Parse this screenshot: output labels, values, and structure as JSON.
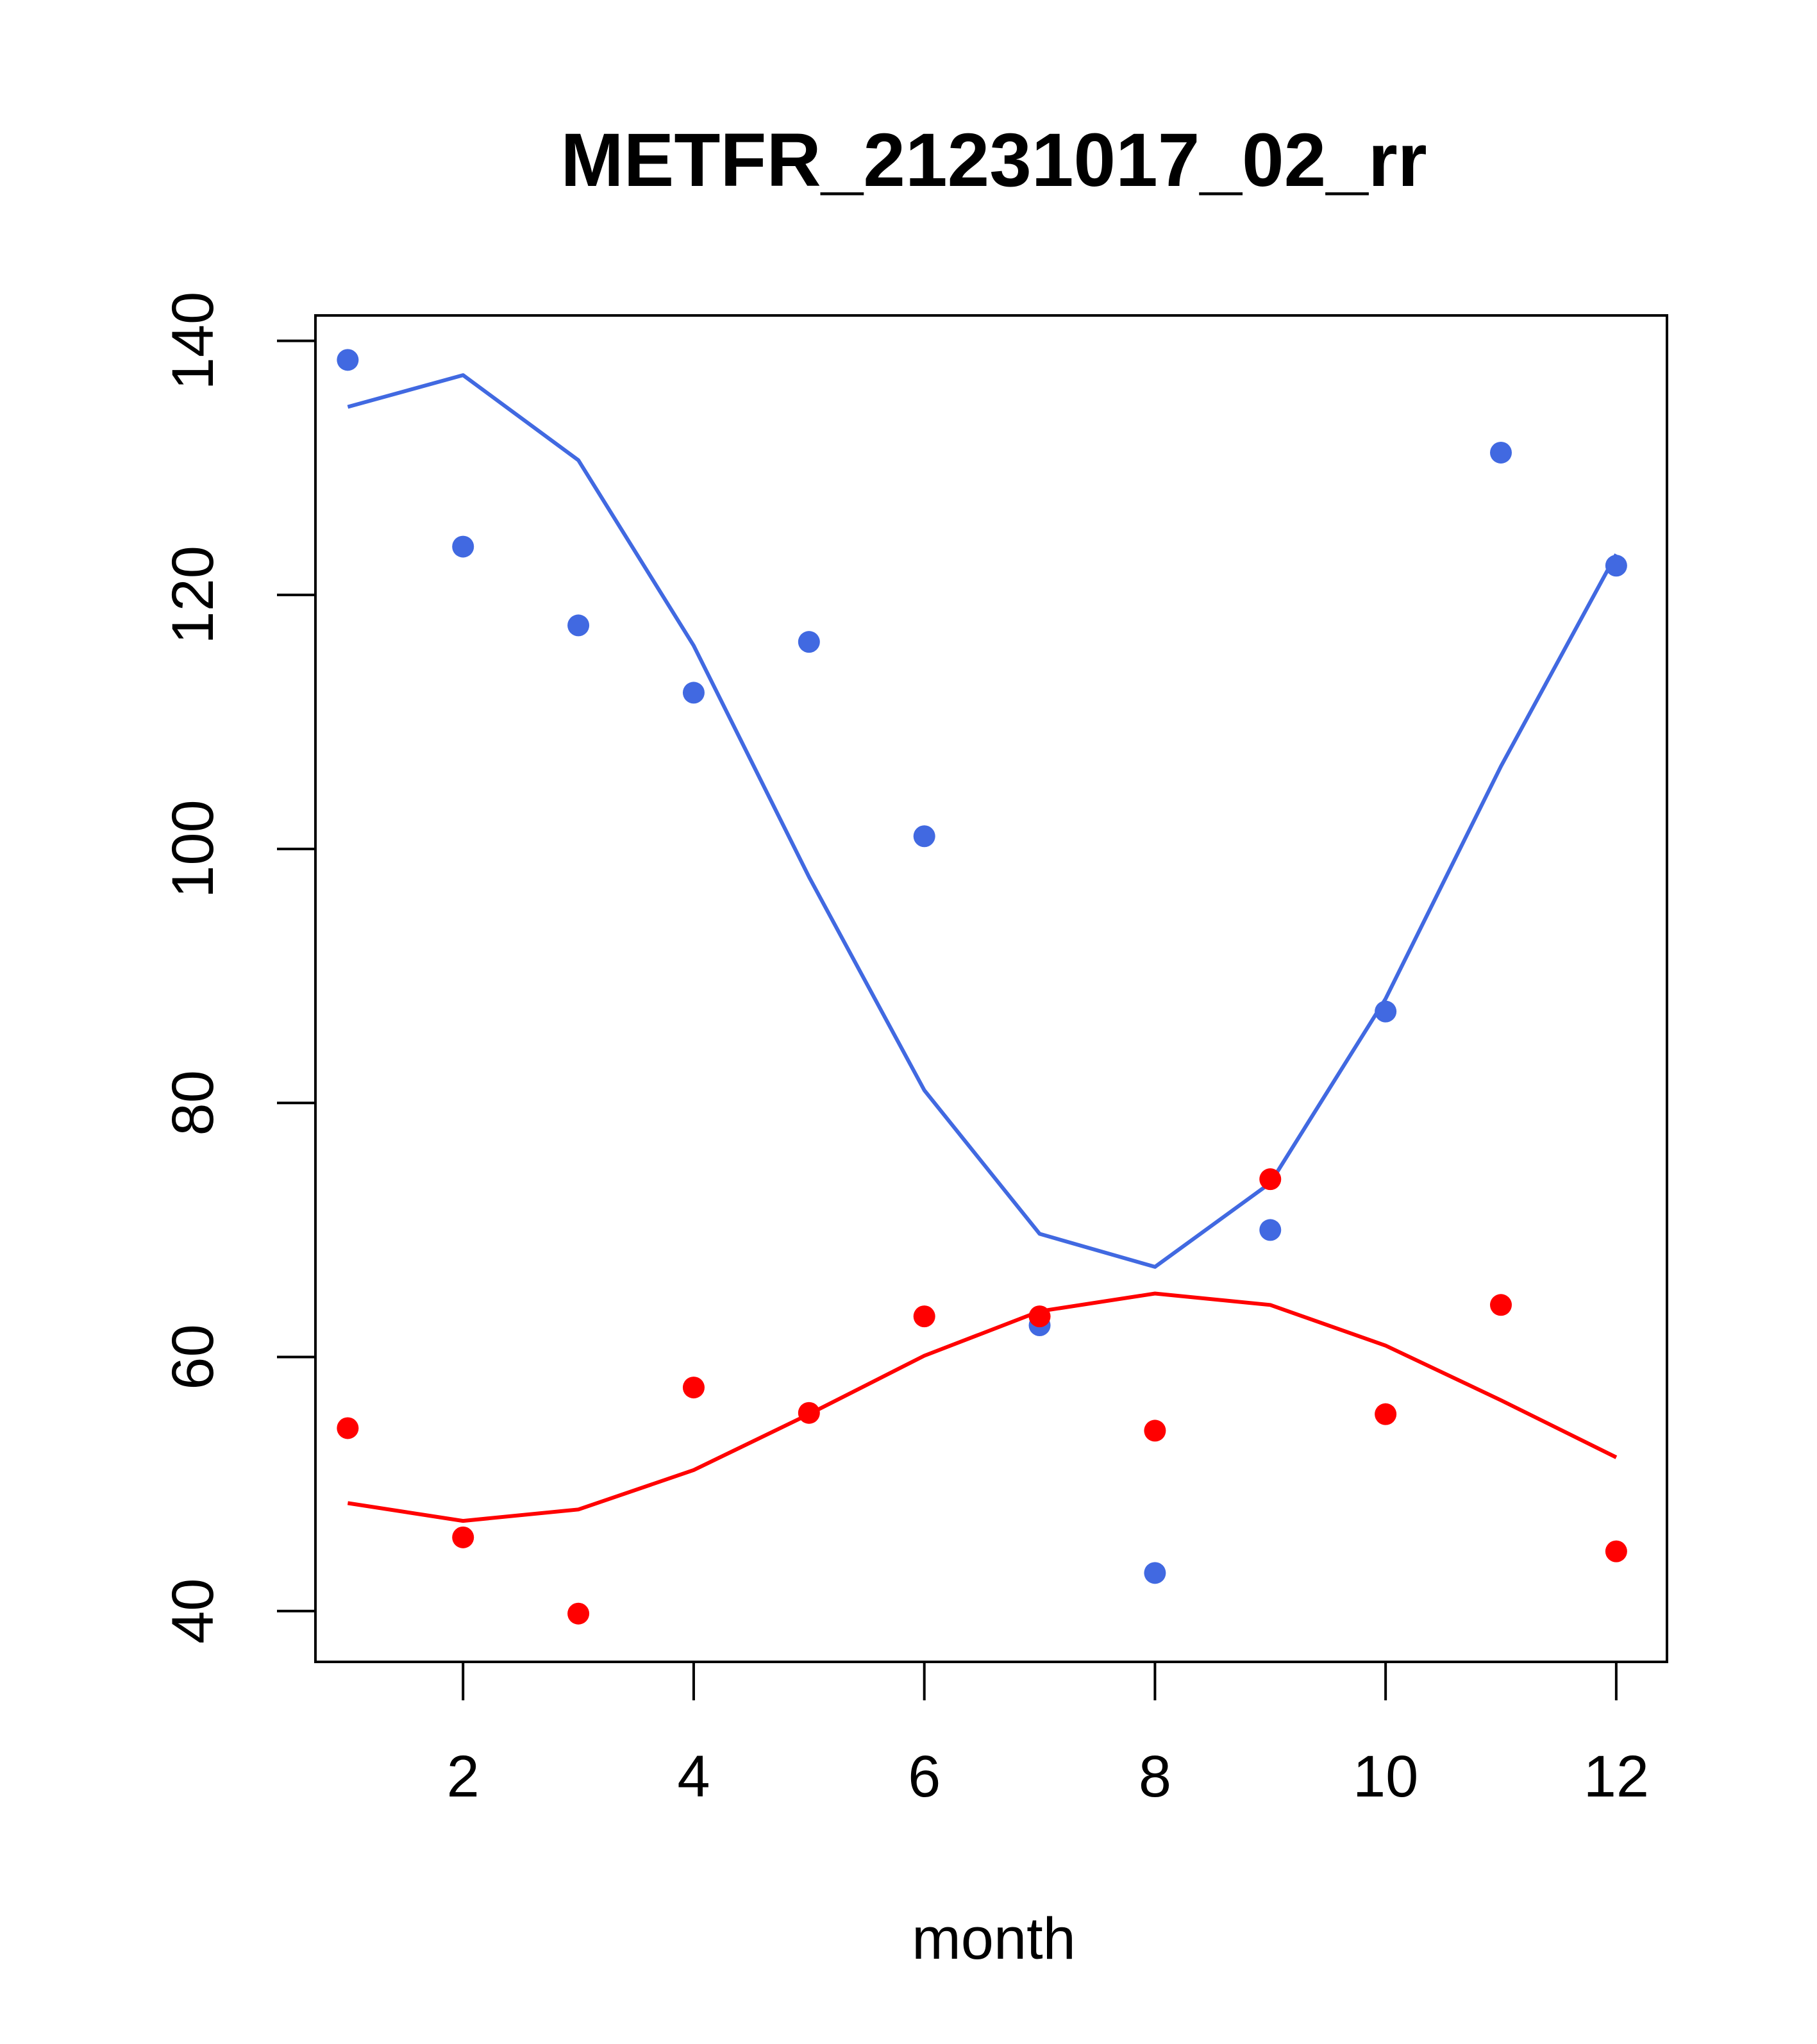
{
  "chart_data": {
    "type": "scatter",
    "title": "METFR_21231017_02_rr",
    "xlabel": "month",
    "ylabel": "",
    "xlim": [
      0.72,
      12.44
    ],
    "ylim": [
      36,
      142
    ],
    "x_ticks": [
      2,
      4,
      6,
      8,
      10,
      12
    ],
    "y_ticks": [
      40,
      60,
      80,
      100,
      120,
      140
    ],
    "grid": false,
    "legend": "none",
    "x": [
      1,
      2,
      3,
      4,
      5,
      6,
      7,
      8,
      9,
      10,
      11,
      12
    ],
    "series": [
      {
        "color": "#4169E1",
        "points": [
          138.5,
          123.8,
          117.6,
          112.3,
          116.3,
          101.0,
          62.5,
          43.0,
          70.0,
          87.2,
          131.2,
          122.3
        ],
        "fit": [
          134.8,
          137.3,
          130.6,
          116.0,
          97.8,
          81.0,
          69.7,
          67.1,
          73.7,
          88.2,
          106.5,
          123.2
        ]
      },
      {
        "color": "#FF0000",
        "points": [
          54.4,
          45.8,
          39.8,
          57.6,
          55.6,
          63.2,
          63.2,
          54.2,
          74.0,
          55.5,
          64.1,
          44.7
        ],
        "fit": [
          48.5,
          47.1,
          48.0,
          51.1,
          55.5,
          60.1,
          63.6,
          65.0,
          64.1,
          60.9,
          56.6,
          52.1
        ]
      }
    ]
  }
}
